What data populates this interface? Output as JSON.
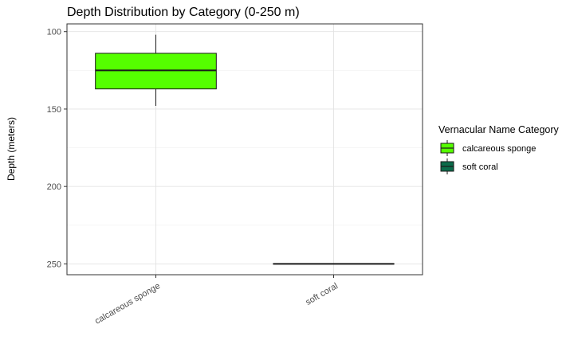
{
  "chart_data": {
    "type": "boxplot",
    "title": "Depth Distribution by Category (0-250 m)",
    "xlabel": "",
    "ylabel": "Depth (meters)",
    "y_reversed": true,
    "ylim": [
      95,
      257
    ],
    "yticks": [
      100,
      150,
      200,
      250
    ],
    "grid": true,
    "legend_position": "right",
    "legend_title": "Vernacular Name Category",
    "categories": [
      "calcareous sponge",
      "soft coral"
    ],
    "boxes": [
      {
        "name": "calcareous sponge",
        "min": 102,
        "q1": 114,
        "median": 125,
        "q3": 137,
        "max": 148,
        "color": "#55ff00"
      },
      {
        "name": "soft coral",
        "min": 250,
        "q1": 250,
        "median": 250,
        "q3": 250,
        "max": 250,
        "color": "#0b6b4a"
      }
    ]
  }
}
